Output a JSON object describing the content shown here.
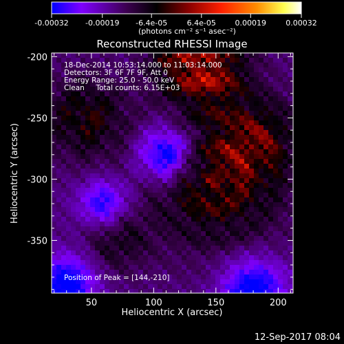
{
  "chart_data": {
    "type": "heatmap",
    "title": "Reconstructed RHESSI Image",
    "xlabel": "Heliocentric X (arcsec)",
    "ylabel": "Heliocentric Y (arcsec)",
    "xlim": [
      18,
      212
    ],
    "ylim": [
      -393,
      -197
    ],
    "x_ticks": [
      50,
      100,
      150,
      200
    ],
    "y_ticks": [
      -200,
      -250,
      -300,
      -350
    ],
    "colorbar": {
      "range": [
        -0.00032,
        0.00032
      ],
      "tick_values": [
        -0.00032,
        -0.00019,
        -6.4e-05,
        6.4e-05,
        0.00019,
        0.00032
      ],
      "tick_labels": [
        "-0.00032",
        "-0.00019",
        "-6.4e-05",
        "6.4e-05",
        "0.00019",
        "0.00032"
      ],
      "unit_label": "(photons cm⁻² s⁻¹ asec⁻²)",
      "colors": [
        "#0000ff",
        "#7f00ff",
        "#3c0050",
        "#000000",
        "#8a0000",
        "#ff2000",
        "#ff8c00",
        "#ffff50",
        "#ffffff"
      ]
    },
    "annotations": [
      "18-Dec-2014 10:53:14.000 to 11:03:14.000",
      "Detectors: 3F 6F 7F 9F, Att 0",
      "Energy Range: 25.0 - 50.0 keV",
      "Clean     Total counts: 6.15E+03"
    ],
    "peak_label": "Position of Peak = [144,-210]",
    "peak": [
      144,
      -210
    ]
  },
  "footer_date": "12-Sep-2017 08:04"
}
